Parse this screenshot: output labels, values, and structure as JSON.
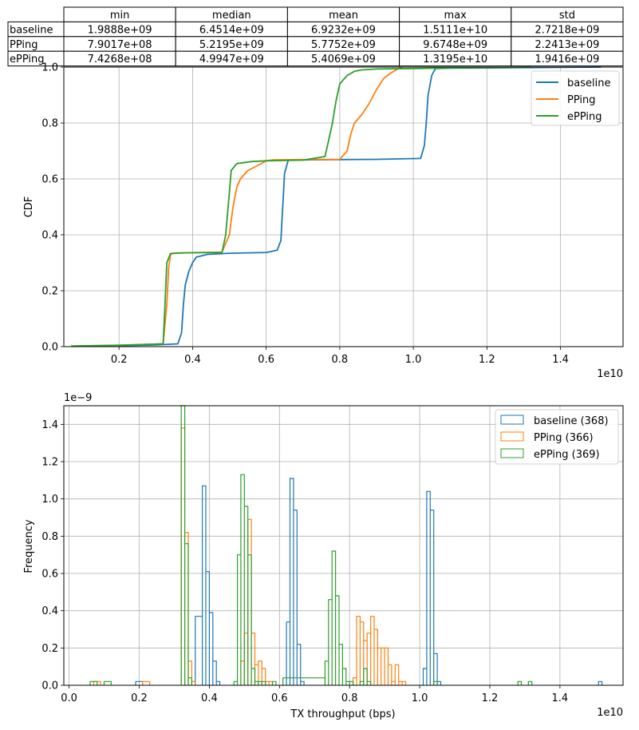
{
  "colors": {
    "baseline": "#1f77b4",
    "pping": "#ff7f0e",
    "epping": "#2ca02c",
    "grid": "#b0b0b0",
    "axis": "#000000"
  },
  "table": {
    "columns": [
      "min",
      "median",
      "mean",
      "max",
      "std"
    ],
    "rows": [
      {
        "label": "baseline",
        "cells": [
          "1.9888e+09",
          "6.4514e+09",
          "6.9232e+09",
          "1.5111e+10",
          "2.7218e+09"
        ]
      },
      {
        "label": "PPing",
        "cells": [
          "7.9017e+08",
          "5.2195e+09",
          "5.7752e+09",
          "9.6748e+09",
          "2.2413e+09"
        ]
      },
      {
        "label": "ePPing",
        "cells": [
          "7.4268e+08",
          "4.9947e+09",
          "5.4069e+09",
          "1.3195e+10",
          "1.9416e+09"
        ]
      }
    ]
  },
  "chart_data": [
    {
      "type": "line",
      "ylabel": "CDF",
      "xlabel": "",
      "x_offset_label": "1e10",
      "xlim": [
        0.05,
        1.57
      ],
      "ylim": [
        0,
        1.0
      ],
      "xticks": [
        0.2,
        0.4,
        0.6,
        0.8,
        1.0,
        1.2,
        1.4
      ],
      "xtick_labels": [
        "0.2",
        "0.4",
        "0.6",
        "0.8",
        "1.0",
        "1.2",
        "1.4"
      ],
      "yticks": [
        0.0,
        0.2,
        0.4,
        0.6,
        0.8,
        1.0
      ],
      "ytick_labels": [
        "0.0",
        "0.2",
        "0.4",
        "0.6",
        "0.8",
        "1.0"
      ],
      "grid": true,
      "legend": "top-right",
      "series": [
        {
          "name": "baseline",
          "color_key": "baseline",
          "x": [
            0.2,
            0.3,
            0.36,
            0.37,
            0.375,
            0.38,
            0.39,
            0.4,
            0.41,
            0.44,
            0.5,
            0.6,
            0.63,
            0.64,
            0.645,
            0.65,
            0.66,
            0.7,
            0.8,
            0.9,
            1.02,
            1.03,
            1.035,
            1.04,
            1.05,
            1.06,
            1.1,
            1.2,
            1.3,
            1.4,
            1.51
          ],
          "y": [
            0.003,
            0.006,
            0.01,
            0.05,
            0.15,
            0.22,
            0.27,
            0.3,
            0.32,
            0.33,
            0.334,
            0.337,
            0.345,
            0.38,
            0.5,
            0.62,
            0.667,
            0.668,
            0.669,
            0.67,
            0.673,
            0.72,
            0.8,
            0.9,
            0.97,
            0.995,
            0.996,
            0.997,
            0.998,
            0.999,
            1.0
          ]
        },
        {
          "name": "PPing",
          "color_key": "pping",
          "x": [
            0.08,
            0.2,
            0.32,
            0.33,
            0.335,
            0.34,
            0.35,
            0.4,
            0.48,
            0.5,
            0.51,
            0.52,
            0.53,
            0.55,
            0.58,
            0.6,
            0.62,
            0.7,
            0.8,
            0.82,
            0.83,
            0.84,
            0.86,
            0.88,
            0.9,
            0.92,
            0.94,
            0.96,
            0.97
          ],
          "y": [
            0.002,
            0.005,
            0.01,
            0.15,
            0.28,
            0.33,
            0.334,
            0.336,
            0.338,
            0.4,
            0.5,
            0.57,
            0.6,
            0.63,
            0.65,
            0.665,
            0.668,
            0.669,
            0.67,
            0.7,
            0.76,
            0.8,
            0.83,
            0.87,
            0.92,
            0.96,
            0.98,
            0.995,
            1.0
          ]
        },
        {
          "name": "ePPing",
          "color_key": "epping",
          "x": [
            0.07,
            0.2,
            0.32,
            0.325,
            0.33,
            0.34,
            0.36,
            0.4,
            0.48,
            0.49,
            0.5,
            0.505,
            0.52,
            0.56,
            0.6,
            0.7,
            0.76,
            0.77,
            0.78,
            0.79,
            0.8,
            0.82,
            0.84,
            0.86,
            0.9,
            1.0,
            1.1,
            1.2,
            1.32
          ],
          "y": [
            0.002,
            0.005,
            0.01,
            0.15,
            0.3,
            0.333,
            0.335,
            0.336,
            0.337,
            0.4,
            0.55,
            0.63,
            0.655,
            0.662,
            0.665,
            0.667,
            0.68,
            0.74,
            0.8,
            0.88,
            0.94,
            0.97,
            0.985,
            0.99,
            0.993,
            0.995,
            0.997,
            0.998,
            1.0
          ]
        }
      ]
    },
    {
      "type": "histogram",
      "ylabel": "Frequency",
      "xlabel": "TX throughput (bps)",
      "x_offset_label": "1e10",
      "y_offset_label": "1e−9",
      "xlim": [
        -0.015,
        1.58
      ],
      "ylim": [
        0,
        1.5
      ],
      "xticks": [
        0.0,
        0.2,
        0.4,
        0.6,
        0.8,
        1.0,
        1.2,
        1.4
      ],
      "xtick_labels": [
        "0.0",
        "0.2",
        "0.4",
        "0.6",
        "0.8",
        "1.0",
        "1.2",
        "1.4"
      ],
      "yticks": [
        0.0,
        0.2,
        0.4,
        0.6,
        0.8,
        1.0,
        1.2,
        1.4
      ],
      "ytick_labels": [
        "0.0",
        "0.2",
        "0.4",
        "0.6",
        "0.8",
        "1.0",
        "1.2",
        "1.4"
      ],
      "grid": true,
      "legend": "top-right",
      "series": [
        {
          "name": "baseline (368)",
          "color_key": "baseline",
          "edges": [
            0.19,
            0.21,
            0.36,
            0.38,
            0.39,
            0.4,
            0.41,
            0.42,
            0.43,
            0.44,
            0.62,
            0.63,
            0.64,
            0.65,
            0.66,
            0.67,
            0.68,
            1.01,
            1.02,
            1.03,
            1.04,
            1.05,
            1.06,
            1.07,
            1.51,
            1.52
          ],
          "counts": [
            0.02,
            0,
            0.37,
            1.07,
            0.61,
            0.39,
            0.13,
            0.02,
            0,
            0,
            0.34,
            1.11,
            0.94,
            0.22,
            0.02,
            0,
            0,
            0.09,
            1.04,
            0.94,
            0.17,
            0.02,
            0,
            0,
            0.02
          ]
        },
        {
          "name": "PPing (366)",
          "color_key": "pping",
          "edges": [
            0.07,
            0.09,
            0.21,
            0.23,
            0.32,
            0.33,
            0.34,
            0.35,
            0.36,
            0.49,
            0.5,
            0.51,
            0.52,
            0.53,
            0.54,
            0.55,
            0.56,
            0.57,
            0.58,
            0.81,
            0.82,
            0.83,
            0.84,
            0.85,
            0.86,
            0.87,
            0.88,
            0.89,
            0.9,
            0.91,
            0.92,
            0.93,
            0.94,
            0.95,
            0.96
          ],
          "counts": [
            0.02,
            0,
            0.02,
            0,
            1.38,
            0.82,
            0.13,
            0.02,
            0,
            0.13,
            0.28,
            0.89,
            0.28,
            0.11,
            0.13,
            0.09,
            0.02,
            0.02,
            0,
            0.04,
            0.37,
            0.34,
            0.24,
            0.28,
            0.37,
            0.3,
            0.2,
            0.2,
            0.2,
            0.11,
            0.02,
            0.11,
            0.02,
            0.02
          ]
        },
        {
          "name": "ePPing (369)",
          "color_key": "epping",
          "edges": [
            0.06,
            0.08,
            0.1,
            0.12,
            0.32,
            0.33,
            0.34,
            0.35,
            0.47,
            0.48,
            0.49,
            0.5,
            0.51,
            0.52,
            0.53,
            0.54,
            0.55,
            0.56,
            0.57,
            0.58,
            0.59,
            0.6,
            0.61,
            0.73,
            0.74,
            0.75,
            0.76,
            0.77,
            0.78,
            0.79,
            0.8,
            0.81,
            0.82,
            0.83,
            0.84,
            0.85,
            0.86,
            0.87,
            1.04,
            1.05,
            1.28,
            1.29,
            1.31,
            1.32
          ],
          "counts": [
            0.02,
            0,
            0.02,
            0,
            1.5,
            0.76,
            0.04,
            0,
            0.02,
            0.7,
            1.13,
            0.96,
            0.7,
            0.09,
            0.02,
            0.02,
            0.02,
            0,
            0,
            0.02,
            0,
            0,
            0.04,
            0.13,
            0.46,
            0.72,
            0.48,
            0.22,
            0.09,
            0.02,
            0.02,
            0,
            0,
            0.02,
            0.09,
            0.02,
            0,
            0,
            0.02,
            0,
            0.02,
            0,
            0.02
          ]
        }
      ]
    }
  ]
}
